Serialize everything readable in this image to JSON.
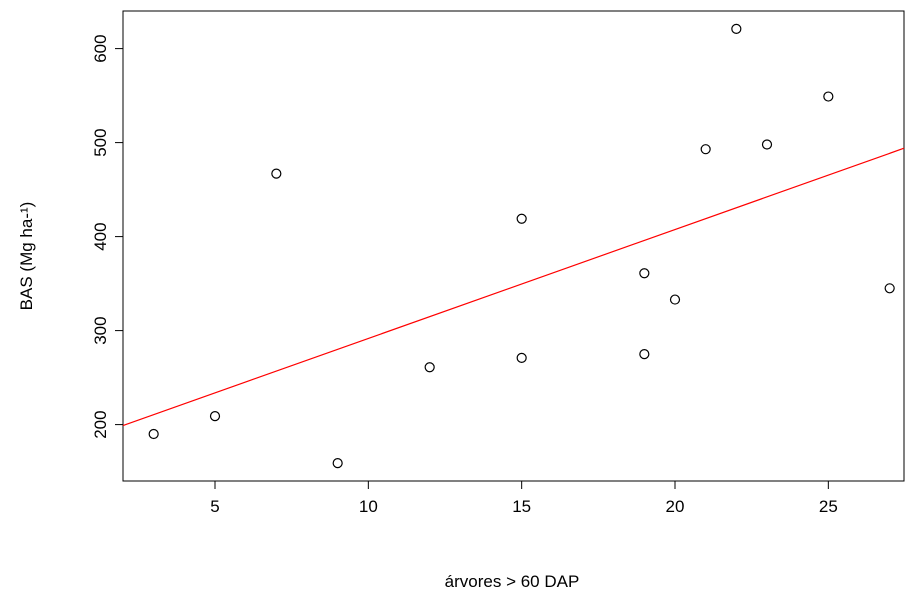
{
  "chart_data": {
    "type": "scatter",
    "title": "",
    "xlabel": "árvores  > 60 DAP",
    "ylabel": "BAS (Mg ha-¹)",
    "xlim": [
      2,
      27.5
    ],
    "ylim": [
      140,
      640
    ],
    "xticks": [
      5,
      10,
      15,
      20,
      25
    ],
    "yticks": [
      200,
      300,
      400,
      500,
      600
    ],
    "grid": false,
    "legend": "none",
    "points": [
      {
        "x": 3,
        "y": 190
      },
      {
        "x": 5,
        "y": 209
      },
      {
        "x": 7,
        "y": 467
      },
      {
        "x": 9,
        "y": 159
      },
      {
        "x": 12,
        "y": 261
      },
      {
        "x": 15,
        "y": 271
      },
      {
        "x": 15,
        "y": 419
      },
      {
        "x": 19,
        "y": 275
      },
      {
        "x": 19,
        "y": 361
      },
      {
        "x": 20,
        "y": 333
      },
      {
        "x": 21,
        "y": 493
      },
      {
        "x": 22,
        "y": 621
      },
      {
        "x": 23,
        "y": 498
      },
      {
        "x": 25,
        "y": 549
      },
      {
        "x": 27,
        "y": 345
      }
    ],
    "regression_line": {
      "x": [
        2,
        27.5
      ],
      "y": [
        199,
        494
      ],
      "color": "#ff0000"
    },
    "point_color": "#000000",
    "box_color": "#000000"
  }
}
